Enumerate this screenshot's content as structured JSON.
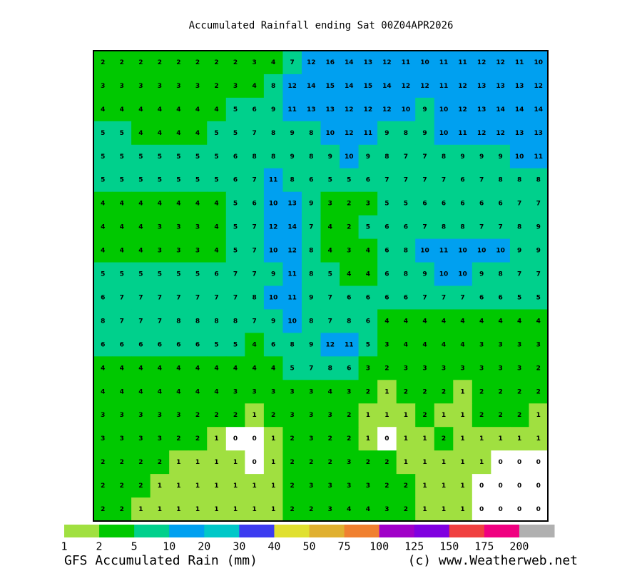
{
  "header": {
    "title": "Accumulated Rainfall ending  Sat 00Z04APR2026"
  },
  "grid": {
    "values": [
      [
        2,
        2,
        2,
        2,
        2,
        2,
        2,
        2,
        3,
        4,
        7,
        12,
        16,
        14,
        13,
        12,
        11,
        10,
        11,
        11,
        12,
        12,
        11,
        10
      ],
      [
        3,
        3,
        3,
        3,
        3,
        3,
        2,
        3,
        4,
        8,
        12,
        14,
        15,
        14,
        15,
        14,
        12,
        12,
        11,
        12,
        13,
        13,
        13,
        12
      ],
      [
        4,
        4,
        4,
        4,
        4,
        4,
        4,
        5,
        6,
        9,
        11,
        13,
        13,
        12,
        12,
        12,
        10,
        9,
        10,
        12,
        13,
        14,
        14,
        14
      ],
      [
        5,
        5,
        4,
        4,
        4,
        4,
        5,
        5,
        7,
        8,
        9,
        8,
        10,
        12,
        11,
        9,
        8,
        9,
        10,
        11,
        12,
        12,
        13,
        13
      ],
      [
        5,
        5,
        5,
        5,
        5,
        5,
        5,
        6,
        8,
        8,
        9,
        8,
        9,
        10,
        9,
        8,
        7,
        7,
        8,
        9,
        9,
        9,
        10,
        11
      ],
      [
        5,
        5,
        5,
        5,
        5,
        5,
        5,
        6,
        7,
        11,
        8,
        6,
        5,
        5,
        6,
        7,
        7,
        7,
        7,
        6,
        7,
        8,
        8,
        8
      ],
      [
        4,
        4,
        4,
        4,
        4,
        4,
        4,
        5,
        6,
        10,
        13,
        9,
        3,
        2,
        3,
        5,
        5,
        6,
        6,
        6,
        6,
        6,
        7,
        7
      ],
      [
        4,
        4,
        4,
        3,
        3,
        3,
        4,
        5,
        7,
        12,
        14,
        7,
        4,
        2,
        5,
        6,
        6,
        7,
        8,
        8,
        7,
        7,
        8,
        9
      ],
      [
        4,
        4,
        4,
        3,
        3,
        3,
        4,
        5,
        7,
        10,
        12,
        8,
        4,
        3,
        4,
        6,
        8,
        10,
        11,
        10,
        10,
        10,
        9,
        9
      ],
      [
        5,
        5,
        5,
        5,
        5,
        5,
        6,
        7,
        7,
        9,
        11,
        8,
        5,
        4,
        4,
        6,
        8,
        9,
        10,
        10,
        9,
        8,
        7,
        7
      ],
      [
        6,
        7,
        7,
        7,
        7,
        7,
        7,
        7,
        8,
        10,
        11,
        9,
        7,
        6,
        6,
        6,
        6,
        7,
        7,
        7,
        6,
        6,
        5,
        5
      ],
      [
        8,
        7,
        7,
        7,
        8,
        8,
        8,
        8,
        7,
        9,
        10,
        8,
        7,
        8,
        6,
        4,
        4,
        4,
        4,
        4,
        4,
        4,
        4,
        4
      ],
      [
        6,
        6,
        6,
        6,
        6,
        6,
        5,
        5,
        4,
        6,
        8,
        9,
        12,
        11,
        5,
        3,
        4,
        4,
        4,
        4,
        3,
        3,
        3,
        3
      ],
      [
        4,
        4,
        4,
        4,
        4,
        4,
        4,
        4,
        4,
        4,
        5,
        7,
        8,
        6,
        3,
        2,
        3,
        3,
        3,
        3,
        3,
        3,
        3,
        2
      ],
      [
        4,
        4,
        4,
        4,
        4,
        4,
        4,
        3,
        3,
        3,
        3,
        3,
        4,
        3,
        2,
        1,
        2,
        2,
        2,
        1,
        2,
        2,
        2,
        2
      ],
      [
        3,
        3,
        3,
        3,
        3,
        2,
        2,
        2,
        1,
        2,
        3,
        3,
        3,
        2,
        1,
        1,
        1,
        2,
        1,
        1,
        2,
        2,
        2,
        1
      ],
      [
        3,
        3,
        3,
        3,
        2,
        2,
        1,
        0,
        0,
        1,
        2,
        3,
        2,
        2,
        1,
        0,
        1,
        1,
        2,
        1,
        1,
        1,
        1,
        1
      ],
      [
        2,
        2,
        2,
        2,
        1,
        1,
        1,
        1,
        0,
        1,
        2,
        2,
        2,
        3,
        2,
        2,
        1,
        1,
        1,
        1,
        1,
        0,
        0,
        0
      ],
      [
        2,
        2,
        2,
        1,
        1,
        1,
        1,
        1,
        1,
        1,
        2,
        3,
        3,
        3,
        3,
        2,
        2,
        1,
        1,
        1,
        0,
        0,
        0,
        0
      ],
      [
        2,
        2,
        1,
        1,
        1,
        1,
        1,
        1,
        1,
        1,
        2,
        2,
        3,
        4,
        4,
        3,
        2,
        1,
        1,
        1,
        0,
        0,
        0,
        0
      ]
    ]
  },
  "legend": {
    "labels": [
      1,
      2,
      5,
      10,
      20,
      30,
      40,
      50,
      75,
      100,
      125,
      150,
      175,
      200
    ],
    "colors": [
      "#a0e040",
      "#00c800",
      "#00d08c",
      "#00a0f0",
      "#00c8c8",
      "#3c3cf0",
      "#e0e030",
      "#e0b030",
      "#f08030",
      "#a000c8",
      "#8000e0",
      "#f04040",
      "#f00080",
      "#b0b0b0"
    ]
  },
  "footer": {
    "product": "GFS Accumulated Rain (mm)",
    "credit": "(c) www.Weatherweb.net"
  }
}
